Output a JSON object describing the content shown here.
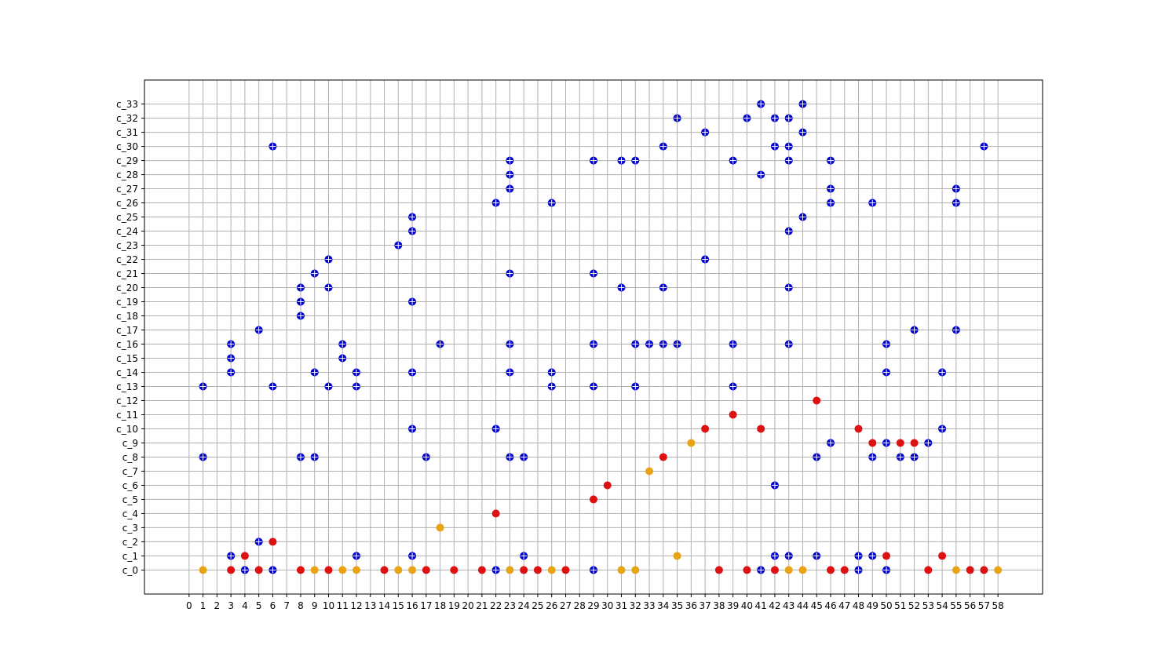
{
  "chart_data": {
    "type": "scatter",
    "title": "",
    "xlabel": "",
    "ylabel": "",
    "grid": true,
    "xlim": [
      -3.2,
      61.2
    ],
    "ylim": [
      -1.7,
      34.7
    ],
    "x_ticks": [
      "0",
      "1",
      "2",
      "3",
      "4",
      "5",
      "6",
      "7",
      "8",
      "9",
      "10",
      "11",
      "12",
      "13",
      "14",
      "15",
      "16",
      "17",
      "18",
      "19",
      "20",
      "21",
      "22",
      "23",
      "24",
      "25",
      "26",
      "27",
      "28",
      "29",
      "30",
      "31",
      "32",
      "33",
      "34",
      "35",
      "36",
      "37",
      "38",
      "39",
      "40",
      "41",
      "42",
      "43",
      "44",
      "45",
      "46",
      "47",
      "48",
      "49",
      "50",
      "51",
      "52",
      "53",
      "54",
      "55",
      "56",
      "57",
      "58"
    ],
    "y_ticks": [
      "c_0",
      "c_1",
      "c_2",
      "c_3",
      "c_4",
      "c_5",
      "c_6",
      "c_7",
      "c_8",
      "c_9",
      "c_10",
      "c_11",
      "c_12",
      "c_13",
      "c_14",
      "c_15",
      "c_16",
      "c_17",
      "c_18",
      "c_19",
      "c_20",
      "c_21",
      "c_22",
      "c_23",
      "c_24",
      "c_25",
      "c_26",
      "c_27",
      "c_28",
      "c_29",
      "c_30",
      "c_31",
      "c_32",
      "c_33"
    ],
    "colors": {
      "blue": "#0000cc",
      "red": "#dd1111",
      "orange": "#e8a317"
    },
    "series": [
      {
        "color": "#0000cc",
        "points": [
          [
            1,
            8
          ],
          [
            1,
            13
          ],
          [
            3,
            1
          ],
          [
            3,
            14
          ],
          [
            3,
            15
          ],
          [
            3,
            16
          ],
          [
            4,
            0
          ],
          [
            5,
            2
          ],
          [
            5,
            17
          ],
          [
            6,
            0
          ],
          [
            6,
            13
          ],
          [
            6,
            30
          ],
          [
            8,
            8
          ],
          [
            8,
            18
          ],
          [
            8,
            19
          ],
          [
            8,
            20
          ],
          [
            9,
            8
          ],
          [
            9,
            14
          ],
          [
            9,
            21
          ],
          [
            10,
            13
          ],
          [
            10,
            20
          ],
          [
            10,
            22
          ],
          [
            11,
            15
          ],
          [
            11,
            16
          ],
          [
            12,
            1
          ],
          [
            12,
            13
          ],
          [
            12,
            14
          ],
          [
            15,
            23
          ],
          [
            16,
            1
          ],
          [
            16,
            10
          ],
          [
            16,
            14
          ],
          [
            16,
            19
          ],
          [
            16,
            24
          ],
          [
            16,
            25
          ],
          [
            17,
            8
          ],
          [
            18,
            16
          ],
          [
            22,
            0
          ],
          [
            22,
            10
          ],
          [
            22,
            26
          ],
          [
            23,
            8
          ],
          [
            23,
            14
          ],
          [
            23,
            16
          ],
          [
            23,
            21
          ],
          [
            23,
            27
          ],
          [
            23,
            28
          ],
          [
            23,
            29
          ],
          [
            24,
            1
          ],
          [
            24,
            8
          ],
          [
            26,
            13
          ],
          [
            26,
            14
          ],
          [
            26,
            26
          ],
          [
            29,
            0
          ],
          [
            29,
            13
          ],
          [
            29,
            16
          ],
          [
            29,
            21
          ],
          [
            29,
            29
          ],
          [
            31,
            20
          ],
          [
            31,
            29
          ],
          [
            32,
            13
          ],
          [
            32,
            16
          ],
          [
            32,
            29
          ],
          [
            33,
            16
          ],
          [
            34,
            16
          ],
          [
            34,
            20
          ],
          [
            34,
            30
          ],
          [
            35,
            16
          ],
          [
            35,
            32
          ],
          [
            37,
            22
          ],
          [
            37,
            31
          ],
          [
            39,
            13
          ],
          [
            39,
            16
          ],
          [
            39,
            29
          ],
          [
            40,
            32
          ],
          [
            41,
            0
          ],
          [
            41,
            28
          ],
          [
            41,
            33
          ],
          [
            42,
            1
          ],
          [
            42,
            6
          ],
          [
            42,
            30
          ],
          [
            42,
            32
          ],
          [
            43,
            1
          ],
          [
            43,
            16
          ],
          [
            43,
            20
          ],
          [
            43,
            24
          ],
          [
            43,
            29
          ],
          [
            43,
            30
          ],
          [
            43,
            32
          ],
          [
            44,
            25
          ],
          [
            44,
            31
          ],
          [
            44,
            33
          ],
          [
            45,
            1
          ],
          [
            45,
            8
          ],
          [
            46,
            9
          ],
          [
            46,
            26
          ],
          [
            46,
            27
          ],
          [
            46,
            29
          ],
          [
            48,
            0
          ],
          [
            48,
            1
          ],
          [
            49,
            1
          ],
          [
            49,
            8
          ],
          [
            49,
            26
          ],
          [
            50,
            0
          ],
          [
            50,
            9
          ],
          [
            50,
            14
          ],
          [
            50,
            16
          ],
          [
            51,
            8
          ],
          [
            52,
            8
          ],
          [
            52,
            17
          ],
          [
            53,
            9
          ],
          [
            54,
            10
          ],
          [
            54,
            14
          ],
          [
            55,
            17
          ],
          [
            55,
            26
          ],
          [
            55,
            27
          ],
          [
            57,
            30
          ]
        ]
      },
      {
        "color": "#dd1111",
        "points": [
          [
            3,
            0
          ],
          [
            4,
            1
          ],
          [
            5,
            0
          ],
          [
            6,
            2
          ],
          [
            8,
            0
          ],
          [
            10,
            0
          ],
          [
            14,
            0
          ],
          [
            17,
            0
          ],
          [
            19,
            0
          ],
          [
            21,
            0
          ],
          [
            22,
            4
          ],
          [
            24,
            0
          ],
          [
            25,
            0
          ],
          [
            27,
            0
          ],
          [
            29,
            5
          ],
          [
            30,
            6
          ],
          [
            34,
            8
          ],
          [
            37,
            10
          ],
          [
            38,
            0
          ],
          [
            39,
            11
          ],
          [
            40,
            0
          ],
          [
            41,
            10
          ],
          [
            42,
            0
          ],
          [
            45,
            12
          ],
          [
            46,
            0
          ],
          [
            47,
            0
          ],
          [
            48,
            10
          ],
          [
            49,
            9
          ],
          [
            50,
            1
          ],
          [
            51,
            9
          ],
          [
            52,
            9
          ],
          [
            53,
            0
          ],
          [
            54,
            1
          ],
          [
            56,
            0
          ],
          [
            57,
            0
          ]
        ]
      },
      {
        "color": "#e8a317",
        "points": [
          [
            1,
            0
          ],
          [
            9,
            0
          ],
          [
            11,
            0
          ],
          [
            12,
            0
          ],
          [
            15,
            0
          ],
          [
            16,
            0
          ],
          [
            18,
            3
          ],
          [
            23,
            0
          ],
          [
            26,
            0
          ],
          [
            31,
            0
          ],
          [
            32,
            0
          ],
          [
            33,
            7
          ],
          [
            35,
            1
          ],
          [
            36,
            9
          ],
          [
            43,
            0
          ],
          [
            44,
            0
          ],
          [
            55,
            0
          ],
          [
            58,
            0
          ]
        ]
      }
    ]
  }
}
